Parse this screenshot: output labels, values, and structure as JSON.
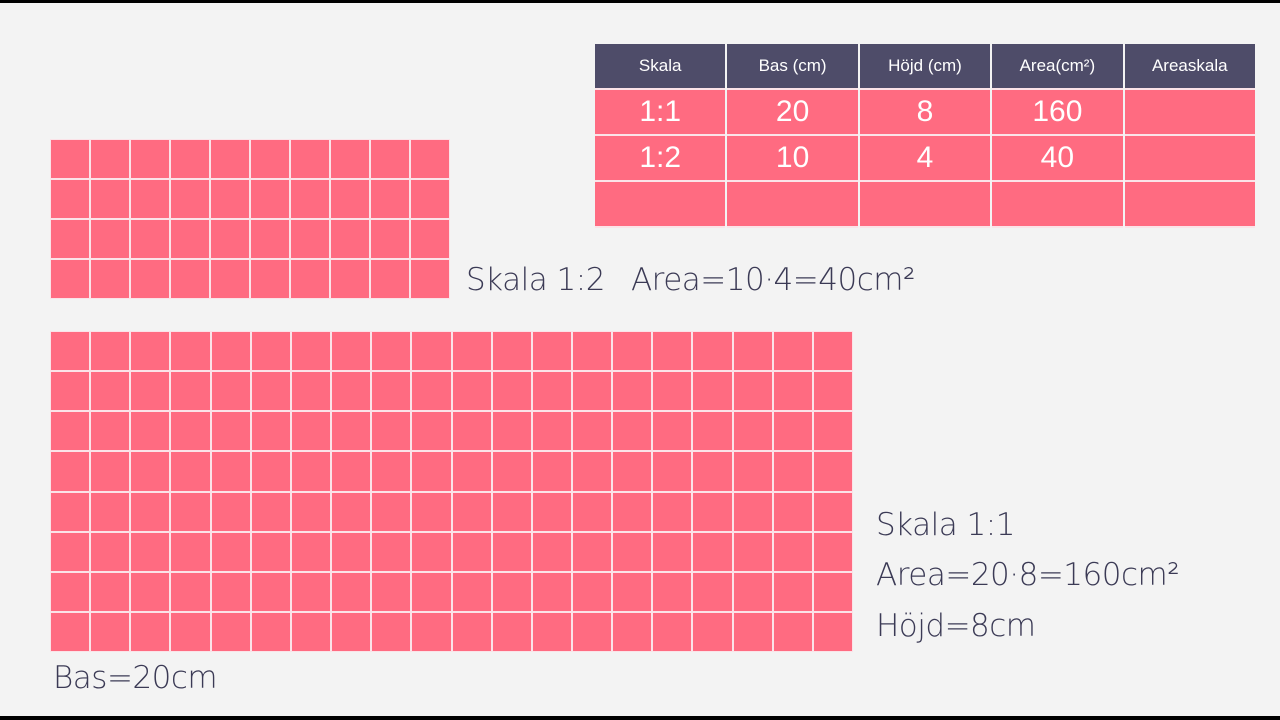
{
  "table": {
    "headers": [
      "Skala",
      "Bas (cm)",
      "Höjd (cm)",
      "Area(cm²)",
      "Areaskala"
    ],
    "rows": [
      [
        "1:1",
        "20",
        "8",
        "160",
        ""
      ],
      [
        "1:2",
        "10",
        "4",
        "40",
        ""
      ],
      [
        "",
        "",
        "",
        "",
        ""
      ]
    ]
  },
  "small_rectangle": {
    "columns": 10,
    "rows": 4,
    "label_scale": "Skala 1:2",
    "label_area": "Area=10·4=40cm²"
  },
  "large_rectangle": {
    "columns": 20,
    "rows": 8,
    "label_scale": "Skala 1:1",
    "label_area": "Area=20·8=160cm²",
    "label_height": "Höjd=8cm",
    "label_base": "Bas=20cm"
  },
  "colors": {
    "cell_fill": "#ff6b81",
    "grid_line": "#fbe3e8",
    "header_fill": "#4e4c69",
    "background": "#f3f3f3",
    "text": "#3b3a55"
  }
}
